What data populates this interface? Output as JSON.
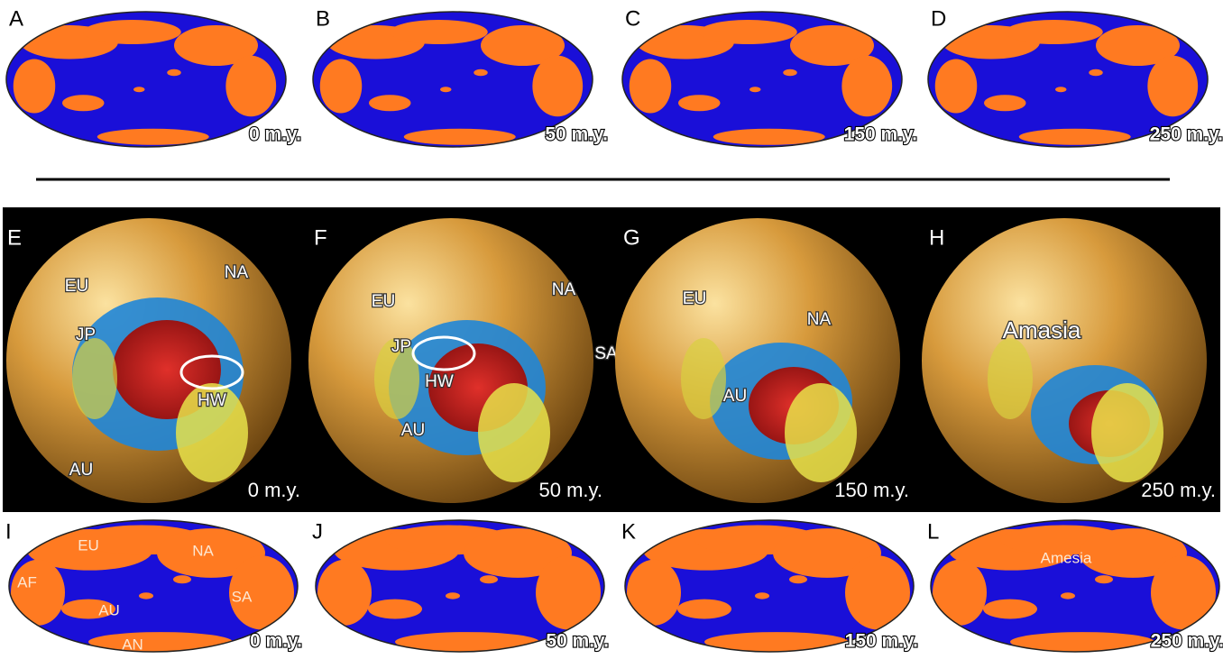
{
  "top_maps": [
    {
      "letter": "A",
      "age": "0 m.y."
    },
    {
      "letter": "B",
      "age": "50 m.y."
    },
    {
      "letter": "C",
      "age": "150 m.y."
    },
    {
      "letter": "D",
      "age": "250 m.y."
    }
  ],
  "globes": [
    {
      "letter": "E",
      "age": "0 m.y.",
      "regions": [
        "EU",
        "NA",
        "JP",
        "HW",
        "AU"
      ]
    },
    {
      "letter": "F",
      "age": "50 m.y.",
      "regions": [
        "EU",
        "NA",
        "JP",
        "SA",
        "HW",
        "AU"
      ]
    },
    {
      "letter": "G",
      "age": "150 m.y.",
      "regions": [
        "EU",
        "NA",
        "AU"
      ]
    },
    {
      "letter": "H",
      "age": "250 m.y.",
      "regions": [
        "Amasia"
      ]
    }
  ],
  "bottom_maps": [
    {
      "letter": "I",
      "age": "0 m.y.",
      "regions": [
        "EU",
        "NA",
        "AF",
        "AU",
        "SA",
        "AN"
      ]
    },
    {
      "letter": "J",
      "age": "50 m.y.",
      "regions": []
    },
    {
      "letter": "K",
      "age": "150 m.y.",
      "regions": []
    },
    {
      "letter": "L",
      "age": "250 m.y.",
      "regions": [
        "Amesia"
      ]
    }
  ]
}
